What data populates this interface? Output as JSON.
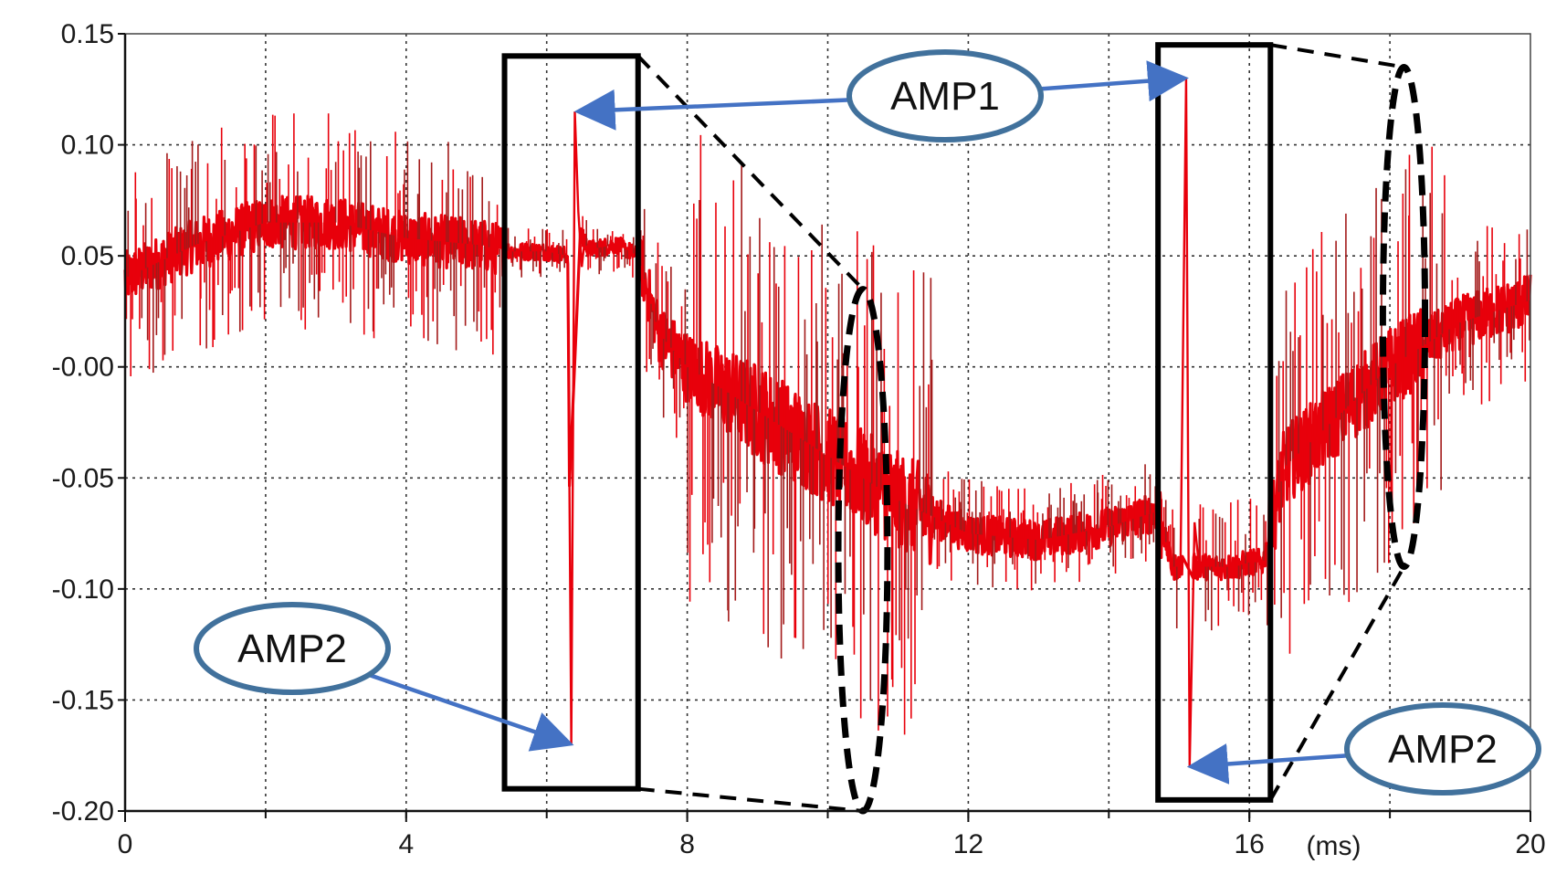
{
  "chart_data": {
    "type": "line",
    "title": "",
    "xlabel": "",
    "ylabel": "",
    "x_unit": "(ms)",
    "xlim": [
      0,
      20
    ],
    "ylim": [
      -0.2,
      0.15
    ],
    "x_ticks": [
      0,
      4,
      8,
      12,
      16,
      20
    ],
    "x_tick_labels": [
      "0",
      "4",
      "8",
      "12",
      "16",
      "20"
    ],
    "x_grid": [
      2,
      4,
      6,
      8,
      10,
      12,
      14,
      16,
      18
    ],
    "y_ticks": [
      0.15,
      0.1,
      0.05,
      0.0,
      -0.05,
      -0.1,
      -0.15,
      -0.2
    ],
    "y_tick_labels": [
      "0.15",
      "0.10",
      "0.05",
      "-0.00",
      "-0.05",
      "-0.10",
      "-0.15",
      "-0.20"
    ],
    "grid": true,
    "series": [
      {
        "color": "#e8000b",
        "x": [
          0,
          1,
          2,
          3,
          4,
          5,
          5.5,
          6,
          6.3,
          6.35,
          6.4,
          6.45,
          6.6,
          7,
          7.3,
          7.6,
          8,
          9,
          10,
          10.5,
          11,
          12,
          13,
          14,
          14.7,
          14.9,
          15.05,
          15.1,
          15.15,
          15.2,
          15.4,
          15.8,
          16,
          16.2,
          16.5,
          17,
          18,
          19,
          20
        ],
        "y": [
          0.04,
          0.055,
          0.065,
          0.065,
          0.058,
          0.055,
          0.052,
          0.052,
          0.05,
          -0.17,
          0.115,
          0.06,
          0.053,
          0.055,
          0.05,
          0.015,
          0.0,
          -0.02,
          -0.04,
          -0.05,
          -0.06,
          -0.075,
          -0.078,
          -0.072,
          -0.065,
          -0.09,
          -0.09,
          0.13,
          -0.18,
          -0.09,
          -0.09,
          -0.09,
          -0.088,
          -0.088,
          -0.045,
          -0.03,
          0.0,
          0.02,
          0.03
        ]
      }
    ],
    "annotations": [
      {
        "label": "AMP1",
        "points_to": [
          [
            6.35,
            0.115
          ],
          [
            15.1,
            0.13
          ]
        ]
      },
      {
        "label": "AMP2",
        "points_to": [
          [
            6.35,
            -0.17
          ]
        ]
      },
      {
        "label": "AMP2",
        "points_to": [
          [
            15.15,
            -0.18
          ]
        ]
      }
    ],
    "highlight_boxes": [
      {
        "x_range": [
          5.4,
          7.3
        ],
        "y_range": [
          -0.19,
          0.14
        ]
      },
      {
        "x_range": [
          14.7,
          16.3
        ],
        "y_range": [
          -0.195,
          0.145
        ]
      }
    ],
    "dashed_ellipses": [
      {
        "center": [
          10.5,
          -0.075
        ],
        "x_halfwidth": 0.35,
        "y_range": [
          -0.2,
          0.035
        ]
      },
      {
        "center": [
          18.2,
          0.02
        ],
        "x_halfwidth": 0.3,
        "y_range": [
          -0.09,
          0.135
        ]
      }
    ]
  },
  "colors": {
    "signal": "#e8000b",
    "signal_spike": "#a31a1a",
    "arrow": "#4472c4",
    "callout_border": "#41719c",
    "box": "#000000"
  }
}
